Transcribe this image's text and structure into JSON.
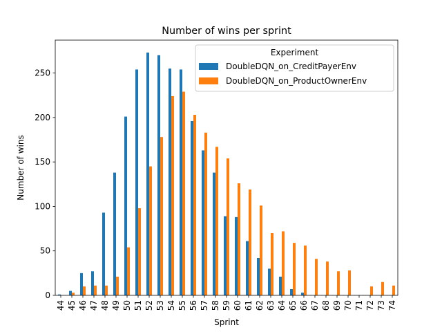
{
  "chart_data": {
    "type": "bar",
    "title": "Number of wins per sprint",
    "xlabel": "Sprint",
    "ylabel": "Number of wins",
    "ylim": [
      0,
      287
    ],
    "yticks": [
      0,
      50,
      100,
      150,
      200,
      250
    ],
    "grid": false,
    "legend": {
      "title": "Experiment",
      "placement": "top-right"
    },
    "categories": [
      "44",
      "45",
      "46",
      "47",
      "48",
      "49",
      "50",
      "51",
      "52",
      "53",
      "54",
      "55",
      "56",
      "57",
      "58",
      "59",
      "60",
      "61",
      "62",
      "63",
      "64",
      "65",
      "66",
      "67",
      "68",
      "69",
      "70",
      "71",
      "72",
      "73",
      "74"
    ],
    "series": [
      {
        "name": "DoubleDQN_on_CreditPayerEnv",
        "color": "#1f77b4",
        "values": [
          1,
          5,
          25,
          27,
          93,
          138,
          201,
          254,
          273,
          270,
          255,
          254,
          196,
          163,
          138,
          89,
          88,
          61,
          42,
          30,
          21,
          7,
          3,
          null,
          null,
          null,
          null,
          null,
          null,
          null,
          null
        ]
      },
      {
        "name": "DoubleDQN_on_ProductOwnerEnv",
        "color": "#ff7f0e",
        "values": [
          null,
          3,
          10,
          11,
          11,
          21,
          54,
          98,
          145,
          178,
          224,
          229,
          203,
          183,
          167,
          154,
          126,
          119,
          101,
          70,
          72,
          59,
          56,
          41,
          38,
          27,
          28,
          null,
          10,
          15,
          11
        ]
      }
    ]
  }
}
